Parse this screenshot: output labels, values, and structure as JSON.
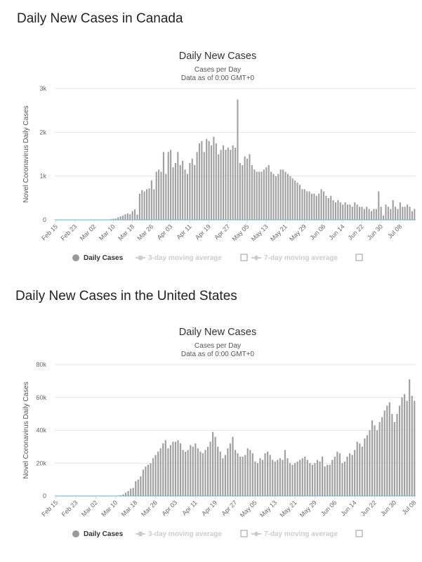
{
  "colors": {
    "bar": "#a0a0a0",
    "grid": "#e6e6e6",
    "baseline": "#5ab4c9",
    "legend_inactive": "#cccccc",
    "legend_active_dot": "#999999"
  },
  "sections": [
    {
      "heading": "Daily New Cases in Canada"
    },
    {
      "heading": "Daily New Cases in the United States"
    }
  ],
  "legend": {
    "daily": "Daily Cases",
    "avg3": "3-day moving average",
    "avg7": "7-day moving average"
  },
  "chart_data": [
    {
      "type": "bar",
      "title": "Daily New Cases",
      "subtitle_1": "Cases per Day",
      "subtitle_2": "Data as of 0:00 GMT+0",
      "ylabel": "Novel Coronavirus Daily Cases",
      "xlabel": "",
      "ylim": [
        0,
        3000
      ],
      "yticks": [
        0,
        1000,
        2000,
        3000
      ],
      "ytick_labels": [
        "0",
        "1k",
        "2k",
        "3k"
      ],
      "grid": true,
      "legend_position": "bottom",
      "x_start": "Feb 15",
      "x_end": "Jul 12",
      "xtick_labels": [
        "Feb 15",
        "Feb 23",
        "Mar 02",
        "Mar 10",
        "Mar 18",
        "Mar 26",
        "Apr 03",
        "Apr 11",
        "Apr 19",
        "Apr 27",
        "May 05",
        "May 13",
        "May 21",
        "May 29",
        "Jun 06",
        "Jun 14",
        "Jun 22",
        "Jun 30",
        "Jul 08"
      ],
      "series": [
        {
          "name": "Daily Cases",
          "values": [
            0,
            0,
            0,
            0,
            0,
            0,
            0,
            0,
            0,
            0,
            0,
            0,
            0,
            0,
            0,
            0,
            0,
            0,
            0,
            0,
            0,
            0,
            0,
            20,
            25,
            30,
            60,
            80,
            100,
            130,
            150,
            130,
            200,
            240,
            120,
            600,
            680,
            650,
            700,
            720,
            900,
            700,
            1100,
            1150,
            1100,
            1550,
            1050,
            1550,
            1600,
            1200,
            1300,
            1550,
            1250,
            1350,
            1150,
            1050,
            1300,
            1400,
            1250,
            1550,
            1750,
            1800,
            1550,
            1850,
            1800,
            1700,
            1900,
            1750,
            1500,
            1600,
            1700,
            1600,
            1650,
            1600,
            1700,
            1650,
            2750,
            1300,
            1250,
            1450,
            1400,
            1500,
            1250,
            1150,
            1100,
            1100,
            1100,
            1150,
            1200,
            1250,
            1100,
            1050,
            1000,
            1050,
            1150,
            1150,
            1100,
            1050,
            1000,
            950,
            900,
            850,
            800,
            700,
            700,
            650,
            650,
            600,
            600,
            550,
            600,
            700,
            650,
            550,
            500,
            550,
            450,
            400,
            450,
            400,
            350,
            400,
            350,
            350,
            300,
            400,
            350,
            300,
            300,
            250,
            300,
            250,
            200,
            250,
            250,
            650,
            300,
            100,
            350,
            300,
            250,
            450,
            300,
            250,
            400,
            300,
            300,
            350,
            300,
            200,
            250
          ]
        }
      ]
    },
    {
      "type": "bar",
      "title": "Daily New Cases",
      "subtitle_1": "Cases per Day",
      "subtitle_2": "Data as of 0:00 GMT+0",
      "ylabel": "Novel Coronavirus Daily Cases",
      "xlabel": "",
      "ylim": [
        0,
        80000
      ],
      "yticks": [
        0,
        20000,
        40000,
        60000,
        80000
      ],
      "ytick_labels": [
        "0",
        "20k",
        "40k",
        "60k",
        "80k"
      ],
      "grid": true,
      "legend_position": "bottom",
      "x_start": "Feb 15",
      "x_end": "Jul 12",
      "xtick_labels": [
        "Feb 15",
        "Feb 23",
        "Mar 02",
        "Mar 10",
        "Mar 18",
        "Mar 26",
        "Apr 03",
        "Apr 11",
        "Apr 19",
        "Apr 27",
        "May 05",
        "May 13",
        "May 21",
        "May 29",
        "Jun 06",
        "Jun 14",
        "Jun 22",
        "Jun 30",
        "Jul 08"
      ],
      "series": [
        {
          "name": "Daily Cases",
          "values": [
            0,
            0,
            0,
            0,
            0,
            0,
            0,
            0,
            0,
            0,
            0,
            0,
            0,
            0,
            0,
            0,
            0,
            0,
            0,
            0,
            0,
            0,
            100,
            100,
            200,
            300,
            500,
            1000,
            2000,
            3000,
            4500,
            5000,
            9000,
            10000,
            12000,
            16000,
            18000,
            19000,
            20000,
            23000,
            25000,
            27000,
            29000,
            32000,
            34000,
            29000,
            31000,
            33000,
            33000,
            34000,
            32000,
            28000,
            27000,
            28000,
            31000,
            30000,
            32000,
            29000,
            27000,
            26000,
            28000,
            30000,
            33000,
            39000,
            36000,
            30000,
            27000,
            23000,
            25000,
            29000,
            32000,
            36000,
            28000,
            26000,
            24000,
            24000,
            25000,
            29000,
            28000,
            26000,
            21000,
            20000,
            23000,
            22000,
            26000,
            27000,
            25000,
            22000,
            21000,
            22000,
            23000,
            22000,
            28000,
            23000,
            20000,
            19000,
            20000,
            21000,
            22000,
            23000,
            24000,
            22000,
            20000,
            19000,
            20000,
            22000,
            21000,
            24000,
            18000,
            19000,
            19000,
            22000,
            24000,
            27000,
            26000,
            20000,
            21000,
            24000,
            26000,
            25000,
            28000,
            33000,
            32000,
            30000,
            35000,
            37000,
            40000,
            46000,
            43000,
            40000,
            45000,
            48000,
            52000,
            55000,
            57000,
            50000,
            45000,
            50000,
            55000,
            60000,
            62000,
            58000,
            71000,
            61000,
            58000
          ]
        }
      ]
    }
  ]
}
